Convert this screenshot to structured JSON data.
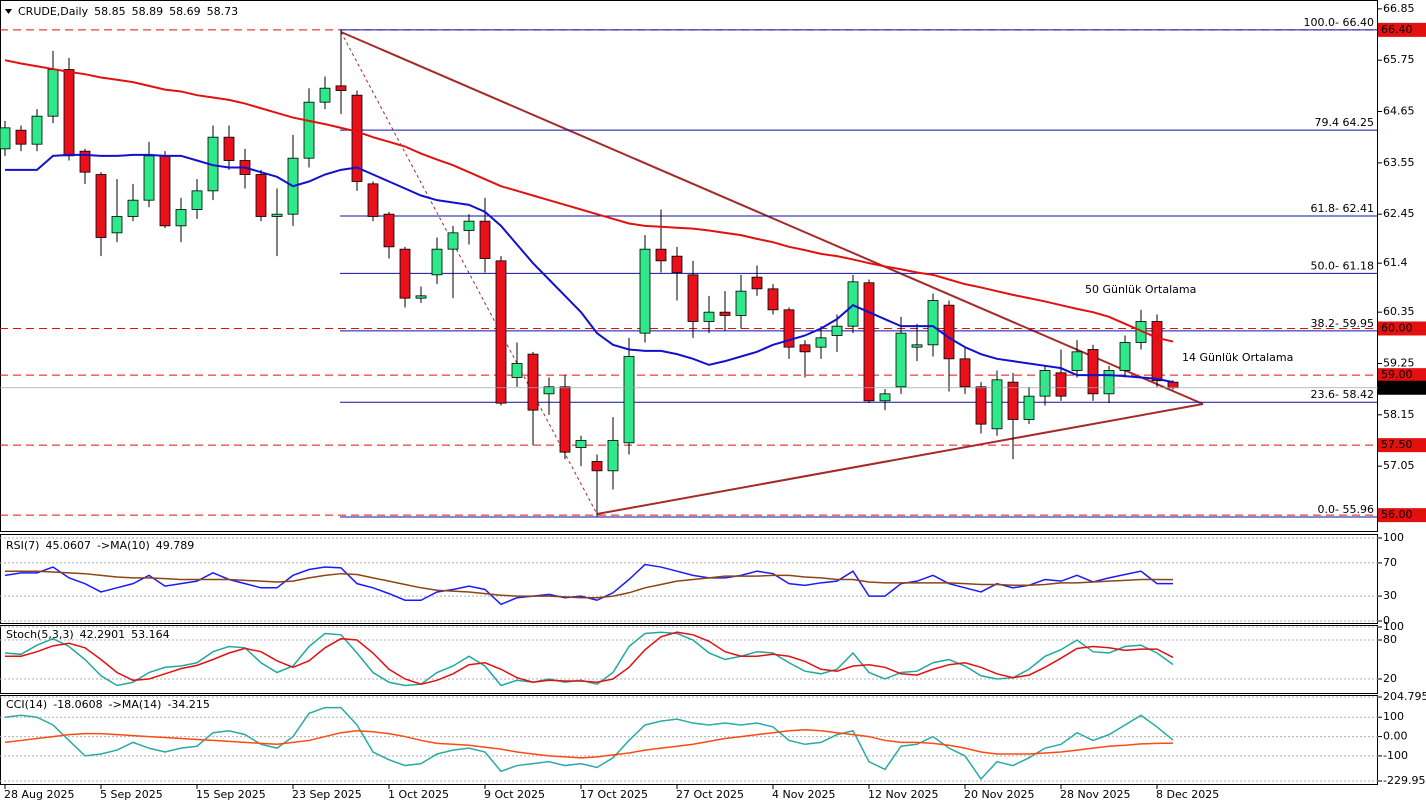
{
  "chart_data": [
    {
      "type": "candlestick",
      "title": "CRUDE,Daily",
      "categories": [
        "28 Aug 2025",
        null,
        null,
        null,
        null,
        null,
        "5 Sep 2025",
        null,
        null,
        null,
        null,
        null,
        "15 Sep 2025",
        null,
        null,
        null,
        null,
        null,
        "23 Sep 2025",
        null,
        null,
        null,
        null,
        null,
        "1 Oct 2025",
        null,
        null,
        null,
        null,
        null,
        "9 Oct 2025",
        null,
        null,
        null,
        null,
        null,
        "17 Oct 2025",
        null,
        null,
        null,
        null,
        null,
        "27 Oct 2025",
        null,
        null,
        null,
        null,
        null,
        "4 Nov 2025",
        null,
        null,
        null,
        null,
        null,
        "12 Nov 2025",
        null,
        null,
        null,
        null,
        null,
        "20 Nov 2025",
        null,
        null,
        null,
        null,
        null,
        "28 Nov 2025",
        null,
        null,
        null,
        null,
        null,
        "8 Dec 2025",
        null
      ],
      "open": [
        63.85,
        64.25,
        63.95,
        64.55,
        65.55,
        63.8,
        63.3,
        62.05,
        62.4,
        62.75,
        63.7,
        62.2,
        62.55,
        62.95,
        64.1,
        63.6,
        63.3,
        62.4,
        62.45,
        63.65,
        64.85,
        65.2,
        65.0,
        63.1,
        62.45,
        61.7,
        60.65,
        61.15,
        61.7,
        62.1,
        62.3,
        61.45,
        58.95,
        59.45,
        58.6,
        58.75,
        57.45,
        57.15,
        56.95,
        57.55,
        59.9,
        61.7,
        61.55,
        61.15,
        60.15,
        60.35,
        60.28,
        61.1,
        60.85,
        60.4,
        59.65,
        59.6,
        59.85,
        60.05,
        60.98,
        58.45,
        58.75,
        59.6,
        59.65,
        60.5,
        59.35,
        58.75,
        57.85,
        58.85,
        58.05,
        58.55,
        59.05,
        59.1,
        59.55,
        58.6,
        59.1,
        59.7,
        60.15,
        58.85
      ],
      "high": [
        64.45,
        64.35,
        64.7,
        65.95,
        65.8,
        63.85,
        63.35,
        63.2,
        63.1,
        64.0,
        63.8,
        62.8,
        63.2,
        64.35,
        64.35,
        63.85,
        63.4,
        63.0,
        64.15,
        65.15,
        65.4,
        66.4,
        65.1,
        63.15,
        62.5,
        61.75,
        60.9,
        61.95,
        62.2,
        62.45,
        62.8,
        61.55,
        59.7,
        59.5,
        58.95,
        59.0,
        57.7,
        57.3,
        58.1,
        59.8,
        62.0,
        62.55,
        61.75,
        61.45,
        60.7,
        60.8,
        61.15,
        61.35,
        60.95,
        60.45,
        59.75,
        60.05,
        60.3,
        61.15,
        61.05,
        58.7,
        60.25,
        60.1,
        60.75,
        60.6,
        59.6,
        58.85,
        59.1,
        59.05,
        58.75,
        59.2,
        59.55,
        59.75,
        59.65,
        59.2,
        59.85,
        60.4,
        60.3,
        58.89
      ],
      "low": [
        63.7,
        63.8,
        63.8,
        64.4,
        63.6,
        63.1,
        61.55,
        61.85,
        62.3,
        62.6,
        62.15,
        61.85,
        62.35,
        62.75,
        63.4,
        63.0,
        62.3,
        61.55,
        62.2,
        63.45,
        64.7,
        64.6,
        62.95,
        62.3,
        61.5,
        60.45,
        60.55,
        60.95,
        60.65,
        61.8,
        61.2,
        58.35,
        58.75,
        57.5,
        58.15,
        57.2,
        57.05,
        55.96,
        56.55,
        57.3,
        59.7,
        61.2,
        60.6,
        59.8,
        59.9,
        59.95,
        60.0,
        60.7,
        60.3,
        59.35,
        58.95,
        59.35,
        59.5,
        59.9,
        58.4,
        58.25,
        58.6,
        59.3,
        59.4,
        58.65,
        58.6,
        57.75,
        57.7,
        57.2,
        57.95,
        58.35,
        58.45,
        58.95,
        58.45,
        58.4,
        58.95,
        59.55,
        58.75,
        58.69
      ],
      "close": [
        64.3,
        63.95,
        64.55,
        65.55,
        63.7,
        63.35,
        61.95,
        62.4,
        62.75,
        63.7,
        62.2,
        62.55,
        62.95,
        64.1,
        63.6,
        63.3,
        62.4,
        62.45,
        63.65,
        64.85,
        65.15,
        65.1,
        63.15,
        62.4,
        61.75,
        60.65,
        60.7,
        61.7,
        62.05,
        62.3,
        61.5,
        58.4,
        59.25,
        58.25,
        58.75,
        57.35,
        57.6,
        56.95,
        57.6,
        59.4,
        61.7,
        61.45,
        61.2,
        60.15,
        60.35,
        60.28,
        60.8,
        60.85,
        60.4,
        59.6,
        59.5,
        59.8,
        60.05,
        61.0,
        58.45,
        58.6,
        59.9,
        59.65,
        60.6,
        59.35,
        58.75,
        57.95,
        58.9,
        58.05,
        58.55,
        59.1,
        58.55,
        59.5,
        58.6,
        59.1,
        59.7,
        60.15,
        58.88,
        58.73
      ],
      "up_color": "#2ee88a",
      "down_color": "#e8101a",
      "series": [
        {
          "name": "50 Günlük Ortalama",
          "color": "#e31010",
          "values": [
            65.75,
            65.68,
            65.62,
            65.56,
            65.5,
            65.45,
            65.38,
            65.33,
            65.28,
            65.2,
            65.12,
            65.08,
            65.0,
            64.95,
            64.9,
            64.82,
            64.72,
            64.62,
            64.52,
            64.45,
            64.38,
            64.3,
            64.22,
            64.1,
            64.0,
            63.9,
            63.75,
            63.62,
            63.5,
            63.35,
            63.2,
            63.05,
            62.95,
            62.85,
            62.75,
            62.65,
            62.55,
            62.45,
            62.35,
            62.25,
            62.2,
            62.18,
            62.16,
            62.14,
            62.1,
            62.05,
            62.0,
            61.92,
            61.85,
            61.75,
            61.68,
            61.6,
            61.55,
            61.48,
            61.4,
            61.33,
            61.27,
            61.2,
            61.15,
            61.05,
            60.95,
            60.88,
            60.8,
            60.72,
            60.65,
            60.58,
            60.5,
            60.42,
            60.35,
            60.25,
            60.1,
            59.95,
            59.8,
            59.72
          ]
        },
        {
          "name": "14 Günlük Ortalama",
          "color": "#1010d0",
          "values": [
            63.4,
            63.4,
            63.4,
            63.7,
            63.72,
            63.72,
            63.7,
            63.7,
            63.72,
            63.72,
            63.7,
            63.7,
            63.6,
            63.5,
            63.45,
            63.45,
            63.35,
            63.25,
            63.05,
            63.15,
            63.3,
            63.4,
            63.45,
            63.3,
            63.15,
            63.0,
            62.85,
            62.75,
            62.7,
            62.65,
            62.5,
            62.2,
            61.8,
            61.4,
            61.05,
            60.7,
            60.35,
            59.9,
            59.65,
            59.55,
            59.52,
            59.52,
            59.45,
            59.35,
            59.22,
            59.3,
            59.4,
            59.5,
            59.65,
            59.75,
            59.85,
            60.0,
            60.2,
            60.5,
            60.35,
            60.2,
            60.05,
            60.05,
            60.05,
            59.8,
            59.6,
            59.45,
            59.35,
            59.3,
            59.25,
            59.2,
            59.15,
            59.0,
            59.0,
            59.0,
            58.98,
            58.95,
            58.92,
            58.85
          ]
        }
      ],
      "ylim": [
        55.66,
        67.04
      ],
      "yticks": [
        66.85,
        65.75,
        64.65,
        63.55,
        62.45,
        61.4,
        60.35,
        59.25,
        58.15,
        57.05
      ],
      "levels": [
        {
          "value": 66.4,
          "label": "66.40"
        },
        {
          "value": 60,
          "label": "60.00"
        },
        {
          "value": 59,
          "label": "59.00"
        },
        {
          "value": 57.5,
          "label": "57.50"
        },
        {
          "value": 56,
          "label": "56.00"
        }
      ],
      "level_color": "#e31010",
      "fib_levels": [
        {
          "value": 66.4,
          "label": "100.0- 66.40"
        },
        {
          "value": 64.25,
          "label": "79.4 64.25"
        },
        {
          "value": 62.41,
          "label": "61.8- 62.41"
        },
        {
          "value": 61.18,
          "label": "50.0- 61.18"
        },
        {
          "value": 59.95,
          "label": "38.2- 59.95"
        },
        {
          "value": 58.42,
          "label": "23.6- 58.42"
        },
        {
          "value": 55.96,
          "label": "0.0- 55.96"
        }
      ],
      "fib_color": "#1010a0"
    },
    {
      "type": "line",
      "series": [
        {
          "name": "RSI(7)",
          "color": "#1a1aff",
          "values": [
            55,
            58,
            58,
            65,
            52,
            45,
            35,
            40,
            45,
            55,
            42,
            45,
            48,
            58,
            50,
            45,
            40,
            40,
            55,
            62,
            65,
            64,
            45,
            40,
            33,
            25,
            25,
            35,
            38,
            42,
            38,
            20,
            28,
            30,
            32,
            28,
            30,
            25,
            34,
            50,
            68,
            65,
            60,
            55,
            52,
            52,
            55,
            60,
            57,
            45,
            43,
            46,
            48,
            60,
            30,
            30,
            45,
            48,
            55,
            45,
            40,
            35,
            45,
            40,
            43,
            50,
            48,
            55,
            47,
            52,
            56,
            60,
            45,
            45.0607
          ]
        },
        {
          "name": "->MA(10)",
          "color": "#8b4513",
          "values": [
            60,
            60,
            60,
            59,
            58,
            57,
            55,
            53,
            52,
            52,
            51,
            50,
            50,
            50,
            50,
            49,
            48,
            47,
            48,
            52,
            55,
            57,
            56,
            52,
            48,
            44,
            40,
            37,
            36,
            35,
            33,
            31,
            30,
            30,
            30,
            29,
            28,
            28,
            30,
            34,
            40,
            44,
            48,
            50,
            52,
            54,
            54,
            54,
            55,
            55,
            53,
            52,
            50,
            50,
            47,
            46,
            46,
            46,
            46,
            46,
            45,
            44,
            44,
            43,
            43,
            44,
            46,
            46,
            47,
            48,
            49,
            50,
            50,
            49.789
          ]
        }
      ],
      "ylim": [
        0,
        100
      ],
      "yticks": [
        100,
        70,
        30,
        0
      ]
    },
    {
      "type": "line",
      "title": "Stoch(5,3,3)",
      "series": [
        {
          "color": "#20a8a0",
          "values": [
            60,
            58,
            72,
            82,
            70,
            50,
            25,
            10,
            15,
            30,
            38,
            40,
            45,
            62,
            70,
            68,
            45,
            30,
            40,
            70,
            90,
            88,
            60,
            30,
            15,
            10,
            12,
            30,
            40,
            55,
            40,
            10,
            18,
            15,
            20,
            15,
            18,
            12,
            30,
            70,
            90,
            92,
            90,
            80,
            60,
            50,
            55,
            62,
            60,
            45,
            32,
            28,
            35,
            60,
            30,
            20,
            30,
            32,
            45,
            50,
            40,
            25,
            20,
            22,
            35,
            55,
            65,
            80,
            62,
            60,
            70,
            72,
            60,
            42.2901
          ]
        },
        {
          "color": "#e31010",
          "values": [
            55,
            55,
            62,
            71,
            75,
            68,
            50,
            30,
            18,
            20,
            28,
            36,
            41,
            50,
            60,
            67,
            62,
            48,
            38,
            48,
            68,
            82,
            80,
            60,
            35,
            20,
            12,
            18,
            28,
            42,
            45,
            35,
            22,
            15,
            18,
            17,
            17,
            15,
            20,
            38,
            65,
            85,
            92,
            88,
            78,
            62,
            55,
            55,
            58,
            55,
            47,
            35,
            32,
            40,
            42,
            38,
            28,
            26,
            35,
            42,
            45,
            38,
            28,
            22,
            26,
            38,
            52,
            67,
            70,
            68,
            64,
            66,
            66,
            53.164
          ]
        }
      ],
      "ylim": [
        0,
        100
      ],
      "yticks": [
        100,
        80,
        20
      ]
    },
    {
      "type": "line",
      "series": [
        {
          "name": "CCI(14)",
          "color": "#2aaaa5",
          "values": [
            100,
            110,
            100,
            60,
            -20,
            -100,
            -90,
            -70,
            -30,
            -60,
            -80,
            -60,
            -50,
            20,
            30,
            10,
            -40,
            -60,
            0,
            120,
            150,
            150,
            60,
            -80,
            -120,
            -150,
            -140,
            -90,
            -70,
            -60,
            -80,
            -180,
            -150,
            -140,
            -130,
            -150,
            -140,
            -160,
            -110,
            -20,
            60,
            80,
            90,
            70,
            60,
            70,
            60,
            70,
            50,
            -20,
            -40,
            -30,
            10,
            30,
            -130,
            -170,
            -50,
            -40,
            0,
            -60,
            -100,
            -220,
            -130,
            -150,
            -110,
            -60,
            -40,
            20,
            -20,
            10,
            60,
            110,
            50,
            -18.0608
          ]
        },
        {
          "name": "->MA(14)",
          "color": "#ff4a10",
          "values": [
            -30,
            -20,
            -10,
            0,
            10,
            15,
            15,
            10,
            5,
            0,
            -5,
            -10,
            -15,
            -20,
            -25,
            -30,
            -35,
            -40,
            -30,
            -20,
            0,
            20,
            30,
            25,
            15,
            0,
            -20,
            -35,
            -40,
            -45,
            -55,
            -65,
            -80,
            -90,
            -100,
            -105,
            -110,
            -105,
            -95,
            -85,
            -70,
            -60,
            -50,
            -40,
            -25,
            -10,
            0,
            10,
            20,
            30,
            35,
            30,
            20,
            10,
            0,
            -20,
            -30,
            -30,
            -35,
            -45,
            -60,
            -80,
            -90,
            -90,
            -90,
            -85,
            -80,
            -70,
            -60,
            -50,
            -45,
            -38,
            -35,
            -34.215
          ]
        }
      ],
      "ylim": [
        -229.951,
        204.795
      ],
      "yticks": [
        204.795,
        100,
        {
          "value": 0,
          "label": "0.00"
        },
        -100,
        -229.951
      ]
    }
  ]
}
